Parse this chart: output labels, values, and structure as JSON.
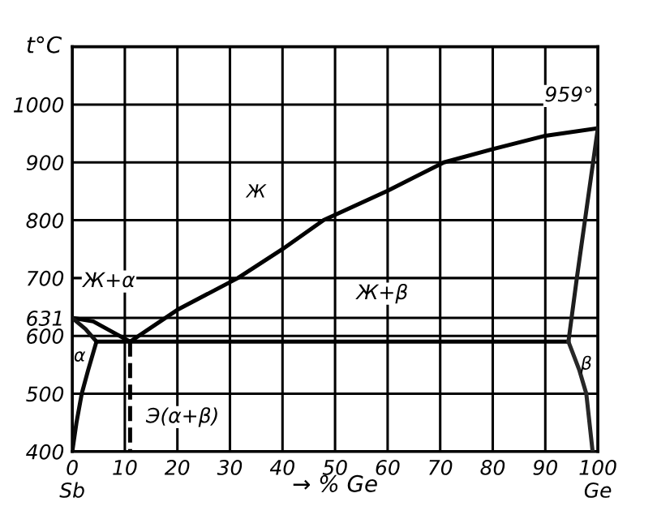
{
  "chart_data": {
    "type": "line",
    "ylabel": "t°C",
    "xlabel": "→ % Ge",
    "xlim": [
      0,
      100
    ],
    "ylim": [
      400,
      1100
    ],
    "xticks": [
      {
        "value": 0,
        "label": "0\nSb"
      },
      10,
      20,
      30,
      40,
      50,
      60,
      70,
      80,
      90,
      {
        "value": 100,
        "label": "100\nGe"
      }
    ],
    "yticks": [
      400,
      500,
      600,
      631,
      700,
      800,
      900,
      1000
    ],
    "grid": true,
    "marker": "none",
    "series": [
      {
        "color": "#000000",
        "x": [
          0,
          4,
          8,
          11
        ],
        "values": [
          631,
          625,
          605,
          590
        ]
      },
      {
        "color": "#000000",
        "x": [
          11,
          20,
          31.5,
          40,
          47.8,
          60,
          70.7,
          80,
          90,
          100
        ],
        "values": [
          590,
          645,
          700,
          750,
          800,
          851,
          900,
          923,
          946,
          959
        ]
      },
      {
        "color": "#141414",
        "x": [
          0,
          2.5,
          4.6
        ],
        "values": [
          631,
          612,
          590
        ]
      },
      {
        "color": "#0a0a0a",
        "x": [
          0,
          0.8,
          1.8,
          3,
          4.6
        ],
        "values": [
          400,
          450,
          500,
          540,
          590
        ]
      },
      {
        "color": "#000000",
        "x": [
          4.6,
          94.4
        ],
        "values": [
          590,
          590
        ]
      },
      {
        "color": "#1e1e1e",
        "x": [
          94.4,
          96,
          100
        ],
        "values": [
          590,
          700,
          959
        ]
      },
      {
        "color": "#282828",
        "x": [
          94.4,
          96.5,
          97.8,
          99
        ],
        "values": [
          590,
          540,
          500,
          400
        ]
      },
      {
        "color": "#000000",
        "x": [
          11,
          11
        ],
        "values": [
          590,
          400
        ],
        "line_style": "dashed"
      }
    ],
    "annotations": [
      "Ж",
      "Ж+α",
      "Ж+β",
      "α",
      "β",
      "Э(α+β)",
      {
        "text": "959°",
        "x": 100,
        "y": 959
      }
    ]
  }
}
